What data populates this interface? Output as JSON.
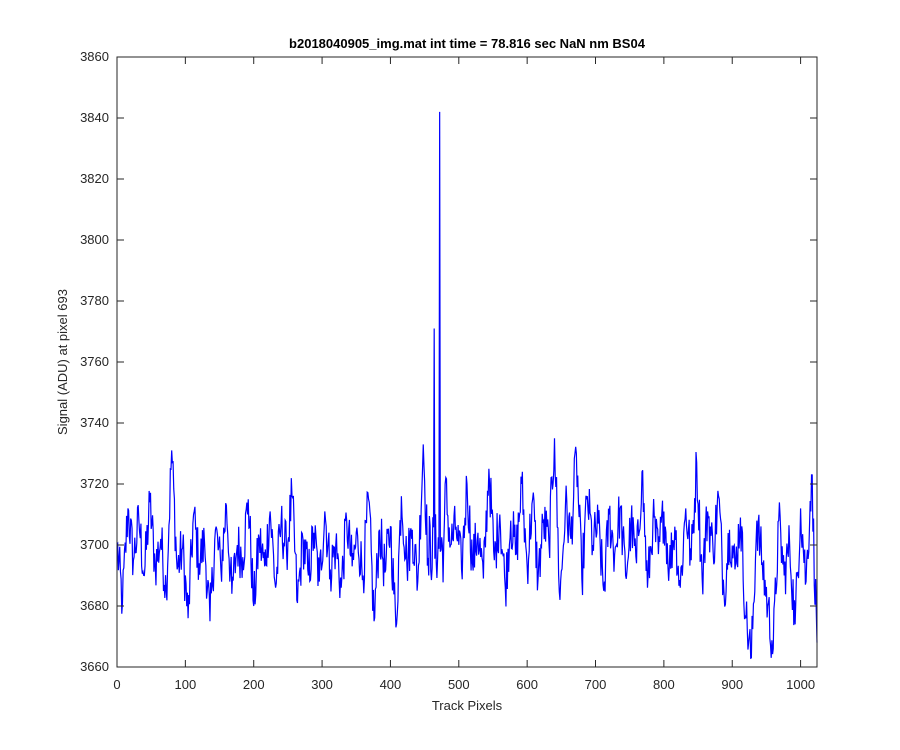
{
  "chart_data": {
    "type": "line",
    "title": "b2018040905_img.mat int time = 78.816 sec  NaN nm BS04",
    "xlabel": "Track Pixels",
    "ylabel": "Signal (ADU) at pixel 693",
    "xlim": [
      0,
      1024
    ],
    "ylim": [
      3660,
      3860
    ],
    "xticks": [
      0,
      100,
      200,
      300,
      400,
      500,
      600,
      700,
      800,
      900,
      1000
    ],
    "yticks": [
      3660,
      3680,
      3700,
      3720,
      3740,
      3760,
      3780,
      3800,
      3820,
      3840,
      3860
    ],
    "grid": false,
    "box": true,
    "line_color": "#0000ff",
    "axis_color": "#262626",
    "series": [
      {
        "points_step": 8,
        "baseline": 3699,
        "noise_range": 30,
        "x": [
          0,
          8,
          16,
          24,
          32,
          40,
          48,
          56,
          64,
          72,
          80,
          88,
          96,
          104,
          112,
          120,
          128,
          136,
          144,
          152,
          160,
          168,
          176,
          184,
          192,
          200,
          208,
          216,
          224,
          232,
          240,
          248,
          256,
          264,
          272,
          280,
          288,
          296,
          304,
          312,
          320,
          328,
          336,
          344,
          352,
          360,
          368,
          376,
          384,
          392,
          400,
          408,
          416,
          424,
          432,
          440,
          448,
          456,
          464,
          472,
          480,
          488,
          496,
          504,
          512,
          520,
          528,
          536,
          544,
          552,
          560,
          568,
          576,
          584,
          592,
          600,
          608,
          616,
          624,
          632,
          640,
          648,
          656,
          664,
          672,
          680,
          688,
          696,
          704,
          712,
          720,
          728,
          736,
          744,
          752,
          760,
          768,
          776,
          784,
          792,
          800,
          808,
          816,
          824,
          832,
          840,
          848,
          856,
          864,
          872,
          880,
          888,
          896,
          904,
          912,
          920,
          928,
          936,
          944,
          952,
          960,
          968,
          976,
          984,
          992,
          1000,
          1008,
          1016,
          1024
        ],
        "y": [
          3700,
          3681,
          3712,
          3695,
          3708,
          3690,
          3714,
          3693,
          3702,
          3685,
          3731,
          3692,
          3699,
          3676,
          3710,
          3694,
          3701,
          3675,
          3705,
          3692,
          3713,
          3684,
          3700,
          3696,
          3715,
          3680,
          3702,
          3693,
          3711,
          3686,
          3707,
          3698,
          3716,
          3681,
          3702,
          3690,
          3704,
          3688,
          3711,
          3692,
          3700,
          3686,
          3708,
          3693,
          3703,
          3690,
          3715,
          3675,
          3705,
          3691,
          3706,
          3673,
          3716,
          3694,
          3705,
          3688,
          3733,
          3690,
          3771,
          3842,
          3720,
          3700,
          3706,
          3692,
          3720,
          3694,
          3704,
          3689,
          3725,
          3695,
          3710,
          3686,
          3708,
          3697,
          3720,
          3693,
          3715,
          3689,
          3708,
          3700,
          3735,
          3682,
          3713,
          3702,
          3730,
          3689,
          3716,
          3700,
          3707,
          3685,
          3710,
          3697,
          3712,
          3690,
          3707,
          3694,
          3724,
          3686,
          3708,
          3697,
          3711,
          3693,
          3706,
          3686,
          3712,
          3695,
          3727,
          3689,
          3711,
          3698,
          3716,
          3684,
          3705,
          3692,
          3709,
          3676,
          3663,
          3708,
          3694,
          3680,
          3666,
          3708,
          3690,
          3700,
          3674,
          3712,
          3688,
          3723,
          3668
        ]
      }
    ]
  }
}
